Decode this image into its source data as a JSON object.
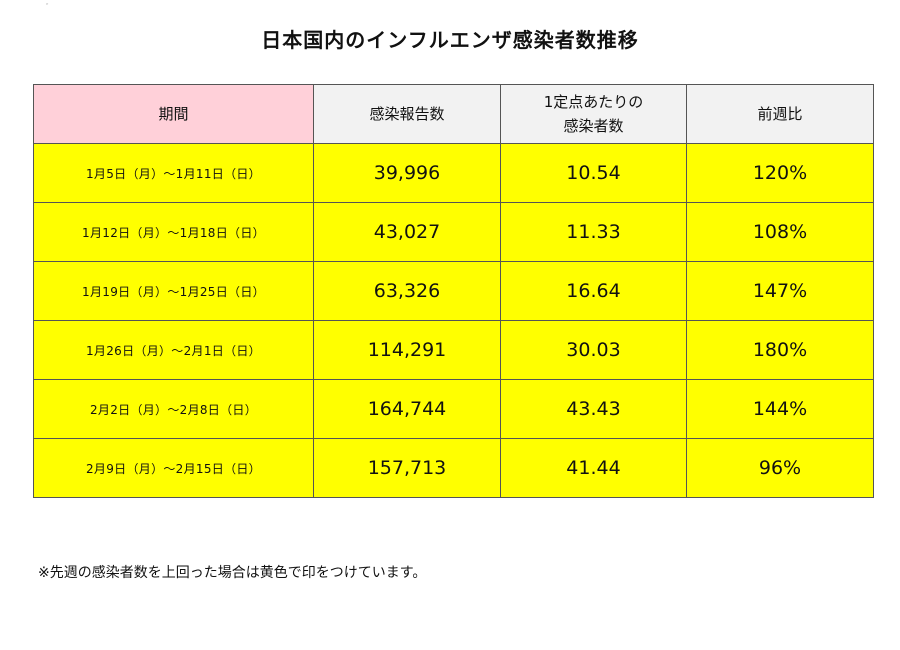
{
  "title": "日本国内のインフルエンザ感染者数推移",
  "corner_mark": "ᵉ",
  "table": {
    "headers": {
      "period": "期間",
      "reports": "感染報告数",
      "per_site_line1": "1定点あたりの",
      "per_site_line2": "感染者数",
      "wow": "前週比"
    },
    "rows": [
      {
        "period": "1月5日（月）～1月11日（日）",
        "reports": "39,996",
        "per_site": "10.54",
        "wow": "120%"
      },
      {
        "period": "1月12日（月）～1月18日（日）",
        "reports": "43,027",
        "per_site": "11.33",
        "wow": "108%"
      },
      {
        "period": "1月19日（月）～1月25日（日）",
        "reports": "63,326",
        "per_site": "16.64",
        "wow": "147%"
      },
      {
        "period": "1月26日（月）～2月1日（日）",
        "reports": "114,291",
        "per_site": "30.03",
        "wow": "180%"
      },
      {
        "period": "2月2日（月）～2月8日（日）",
        "reports": "164,744",
        "per_site": "43.43",
        "wow": "144%"
      },
      {
        "period": "2月9日（月）～2月15日（日）",
        "reports": "157,713",
        "per_site": "41.44",
        "wow": "96%"
      }
    ]
  },
  "note": "※先週の感染者数を上回った場合は黄色で印をつけています。",
  "colors": {
    "highlight": "#ffff00",
    "period_header": "#ffd0d9",
    "header": "#f2f2f2"
  }
}
